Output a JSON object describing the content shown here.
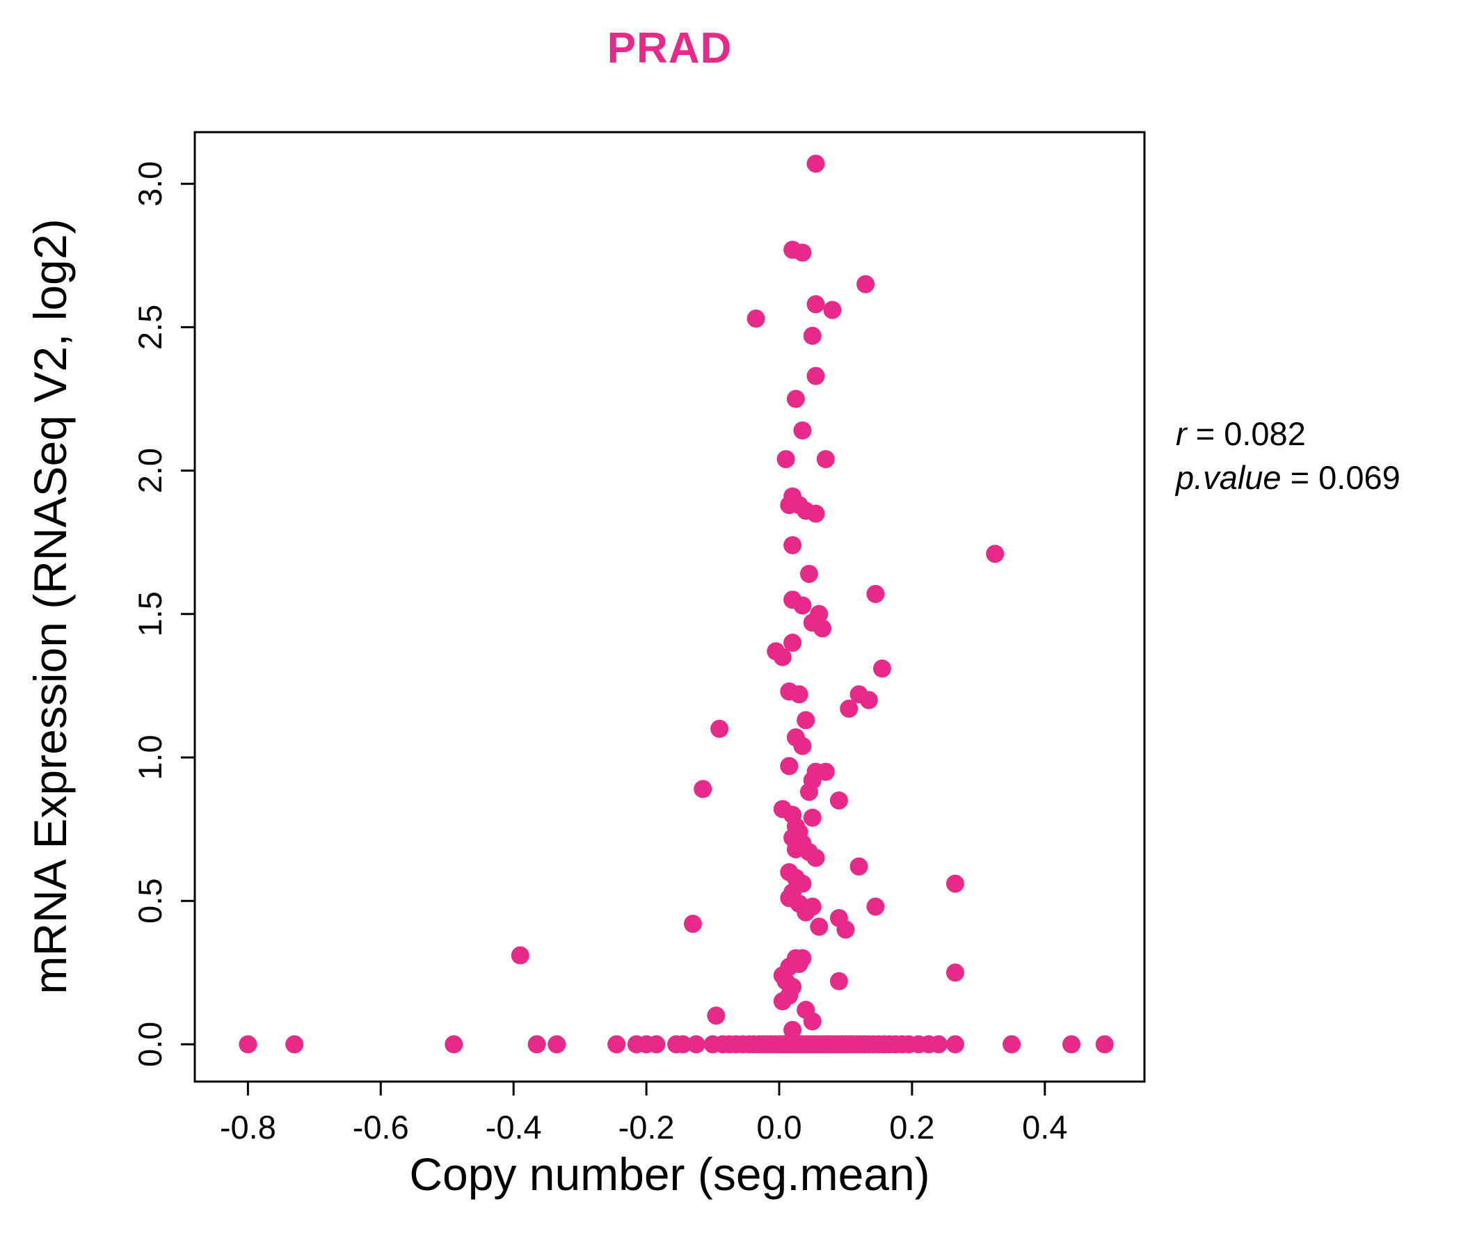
{
  "title_color": "#E7298A",
  "annotation": {
    "r_var": "r",
    "r_eq": " = 0.082",
    "p_var": "p.value",
    "p_eq": " = 0.069"
  },
  "chart_data": {
    "type": "scatter",
    "title": "PRAD",
    "xlabel": "Copy number (seg.mean)",
    "ylabel": "mRNA Expression (RNASeq V2, log2)",
    "xlim": [
      -0.88,
      0.55
    ],
    "ylim": [
      -0.13,
      3.18
    ],
    "xticks": [
      -0.8,
      -0.6,
      -0.4,
      -0.2,
      0.0,
      0.2,
      0.4
    ],
    "yticks": [
      0.0,
      0.5,
      1.0,
      1.5,
      2.0,
      2.5,
      3.0
    ],
    "grid": false,
    "legend": "none",
    "point_color": "#E7298A",
    "point_radius": 13,
    "stats": {
      "r": 0.082,
      "p_value": 0.069
    },
    "points": [
      [
        0.055,
        3.07
      ],
      [
        0.02,
        2.77
      ],
      [
        0.035,
        2.76
      ],
      [
        0.13,
        2.65
      ],
      [
        0.055,
        2.58
      ],
      [
        0.08,
        2.56
      ],
      [
        -0.035,
        2.53
      ],
      [
        0.05,
        2.47
      ],
      [
        0.055,
        2.33
      ],
      [
        0.025,
        2.25
      ],
      [
        0.035,
        2.14
      ],
      [
        0.01,
        2.04
      ],
      [
        0.07,
        2.04
      ],
      [
        0.02,
        1.91
      ],
      [
        0.015,
        1.88
      ],
      [
        0.03,
        1.88
      ],
      [
        0.04,
        1.86
      ],
      [
        0.055,
        1.85
      ],
      [
        0.02,
        1.74
      ],
      [
        0.325,
        1.71
      ],
      [
        0.045,
        1.64
      ],
      [
        0.145,
        1.57
      ],
      [
        0.02,
        1.55
      ],
      [
        0.035,
        1.53
      ],
      [
        0.06,
        1.5
      ],
      [
        0.05,
        1.47
      ],
      [
        0.065,
        1.45
      ],
      [
        0.02,
        1.4
      ],
      [
        -0.005,
        1.37
      ],
      [
        0.005,
        1.35
      ],
      [
        0.155,
        1.31
      ],
      [
        0.015,
        1.23
      ],
      [
        0.03,
        1.22
      ],
      [
        0.12,
        1.22
      ],
      [
        0.135,
        1.2
      ],
      [
        0.105,
        1.17
      ],
      [
        0.04,
        1.13
      ],
      [
        -0.09,
        1.1
      ],
      [
        0.025,
        1.07
      ],
      [
        0.035,
        1.04
      ],
      [
        0.015,
        0.97
      ],
      [
        0.055,
        0.95
      ],
      [
        0.07,
        0.95
      ],
      [
        0.05,
        0.92
      ],
      [
        -0.115,
        0.89
      ],
      [
        0.045,
        0.88
      ],
      [
        0.09,
        0.85
      ],
      [
        0.005,
        0.82
      ],
      [
        0.02,
        0.8
      ],
      [
        0.05,
        0.79
      ],
      [
        0.025,
        0.76
      ],
      [
        0.03,
        0.74
      ],
      [
        0.02,
        0.72
      ],
      [
        0.035,
        0.7
      ],
      [
        0.025,
        0.68
      ],
      [
        0.045,
        0.67
      ],
      [
        0.055,
        0.65
      ],
      [
        0.12,
        0.62
      ],
      [
        0.015,
        0.6
      ],
      [
        0.025,
        0.58
      ],
      [
        0.035,
        0.56
      ],
      [
        0.265,
        0.56
      ],
      [
        0.02,
        0.53
      ],
      [
        0.015,
        0.51
      ],
      [
        0.03,
        0.49
      ],
      [
        0.05,
        0.48
      ],
      [
        0.145,
        0.48
      ],
      [
        0.04,
        0.46
      ],
      [
        0.09,
        0.44
      ],
      [
        -0.13,
        0.42
      ],
      [
        0.06,
        0.41
      ],
      [
        0.1,
        0.4
      ],
      [
        -0.39,
        0.31
      ],
      [
        0.025,
        0.3
      ],
      [
        0.035,
        0.3
      ],
      [
        0.03,
        0.28
      ],
      [
        0.015,
        0.27
      ],
      [
        0.265,
        0.25
      ],
      [
        0.005,
        0.24
      ],
      [
        0.09,
        0.22
      ],
      [
        0.01,
        0.22
      ],
      [
        0.02,
        0.2
      ],
      [
        0.015,
        0.17
      ],
      [
        0.005,
        0.15
      ],
      [
        0.04,
        0.12
      ],
      [
        -0.095,
        0.1
      ],
      [
        0.05,
        0.08
      ],
      [
        0.02,
        0.05
      ],
      [
        -0.8,
        0
      ],
      [
        -0.73,
        0
      ],
      [
        -0.49,
        0
      ],
      [
        -0.365,
        0
      ],
      [
        -0.335,
        0
      ],
      [
        -0.245,
        0
      ],
      [
        -0.215,
        0
      ],
      [
        -0.2,
        0
      ],
      [
        -0.185,
        0
      ],
      [
        -0.155,
        0
      ],
      [
        -0.145,
        0
      ],
      [
        -0.125,
        0
      ],
      [
        -0.1,
        0
      ],
      [
        -0.085,
        0
      ],
      [
        -0.075,
        0
      ],
      [
        -0.065,
        0
      ],
      [
        -0.055,
        0
      ],
      [
        -0.045,
        0
      ],
      [
        -0.038,
        0
      ],
      [
        -0.03,
        0
      ],
      [
        -0.024,
        0
      ],
      [
        -0.018,
        0
      ],
      [
        -0.012,
        0
      ],
      [
        -0.006,
        0
      ],
      [
        0,
        0
      ],
      [
        0.004,
        0
      ],
      [
        0.008,
        0
      ],
      [
        0.012,
        0
      ],
      [
        0.016,
        0
      ],
      [
        0.02,
        0
      ],
      [
        0.024,
        0
      ],
      [
        0.028,
        0
      ],
      [
        0.032,
        0
      ],
      [
        0.036,
        0
      ],
      [
        0.04,
        0
      ],
      [
        0.044,
        0
      ],
      [
        0.048,
        0
      ],
      [
        0.052,
        0
      ],
      [
        0.056,
        0
      ],
      [
        0.06,
        0
      ],
      [
        0.064,
        0
      ],
      [
        0.068,
        0
      ],
      [
        0.072,
        0
      ],
      [
        0.076,
        0
      ],
      [
        0.08,
        0
      ],
      [
        0.085,
        0
      ],
      [
        0.09,
        0
      ],
      [
        0.095,
        0
      ],
      [
        0.1,
        0
      ],
      [
        0.105,
        0
      ],
      [
        0.11,
        0
      ],
      [
        0.116,
        0
      ],
      [
        0.122,
        0
      ],
      [
        0.128,
        0
      ],
      [
        0.135,
        0
      ],
      [
        0.142,
        0
      ],
      [
        0.15,
        0
      ],
      [
        0.158,
        0
      ],
      [
        0.166,
        0
      ],
      [
        0.175,
        0
      ],
      [
        0.185,
        0
      ],
      [
        0.195,
        0
      ],
      [
        0.21,
        0
      ],
      [
        0.225,
        0
      ],
      [
        0.24,
        0
      ],
      [
        0.265,
        0
      ],
      [
        0.35,
        0
      ],
      [
        0.44,
        0
      ],
      [
        0.49,
        0
      ]
    ]
  }
}
